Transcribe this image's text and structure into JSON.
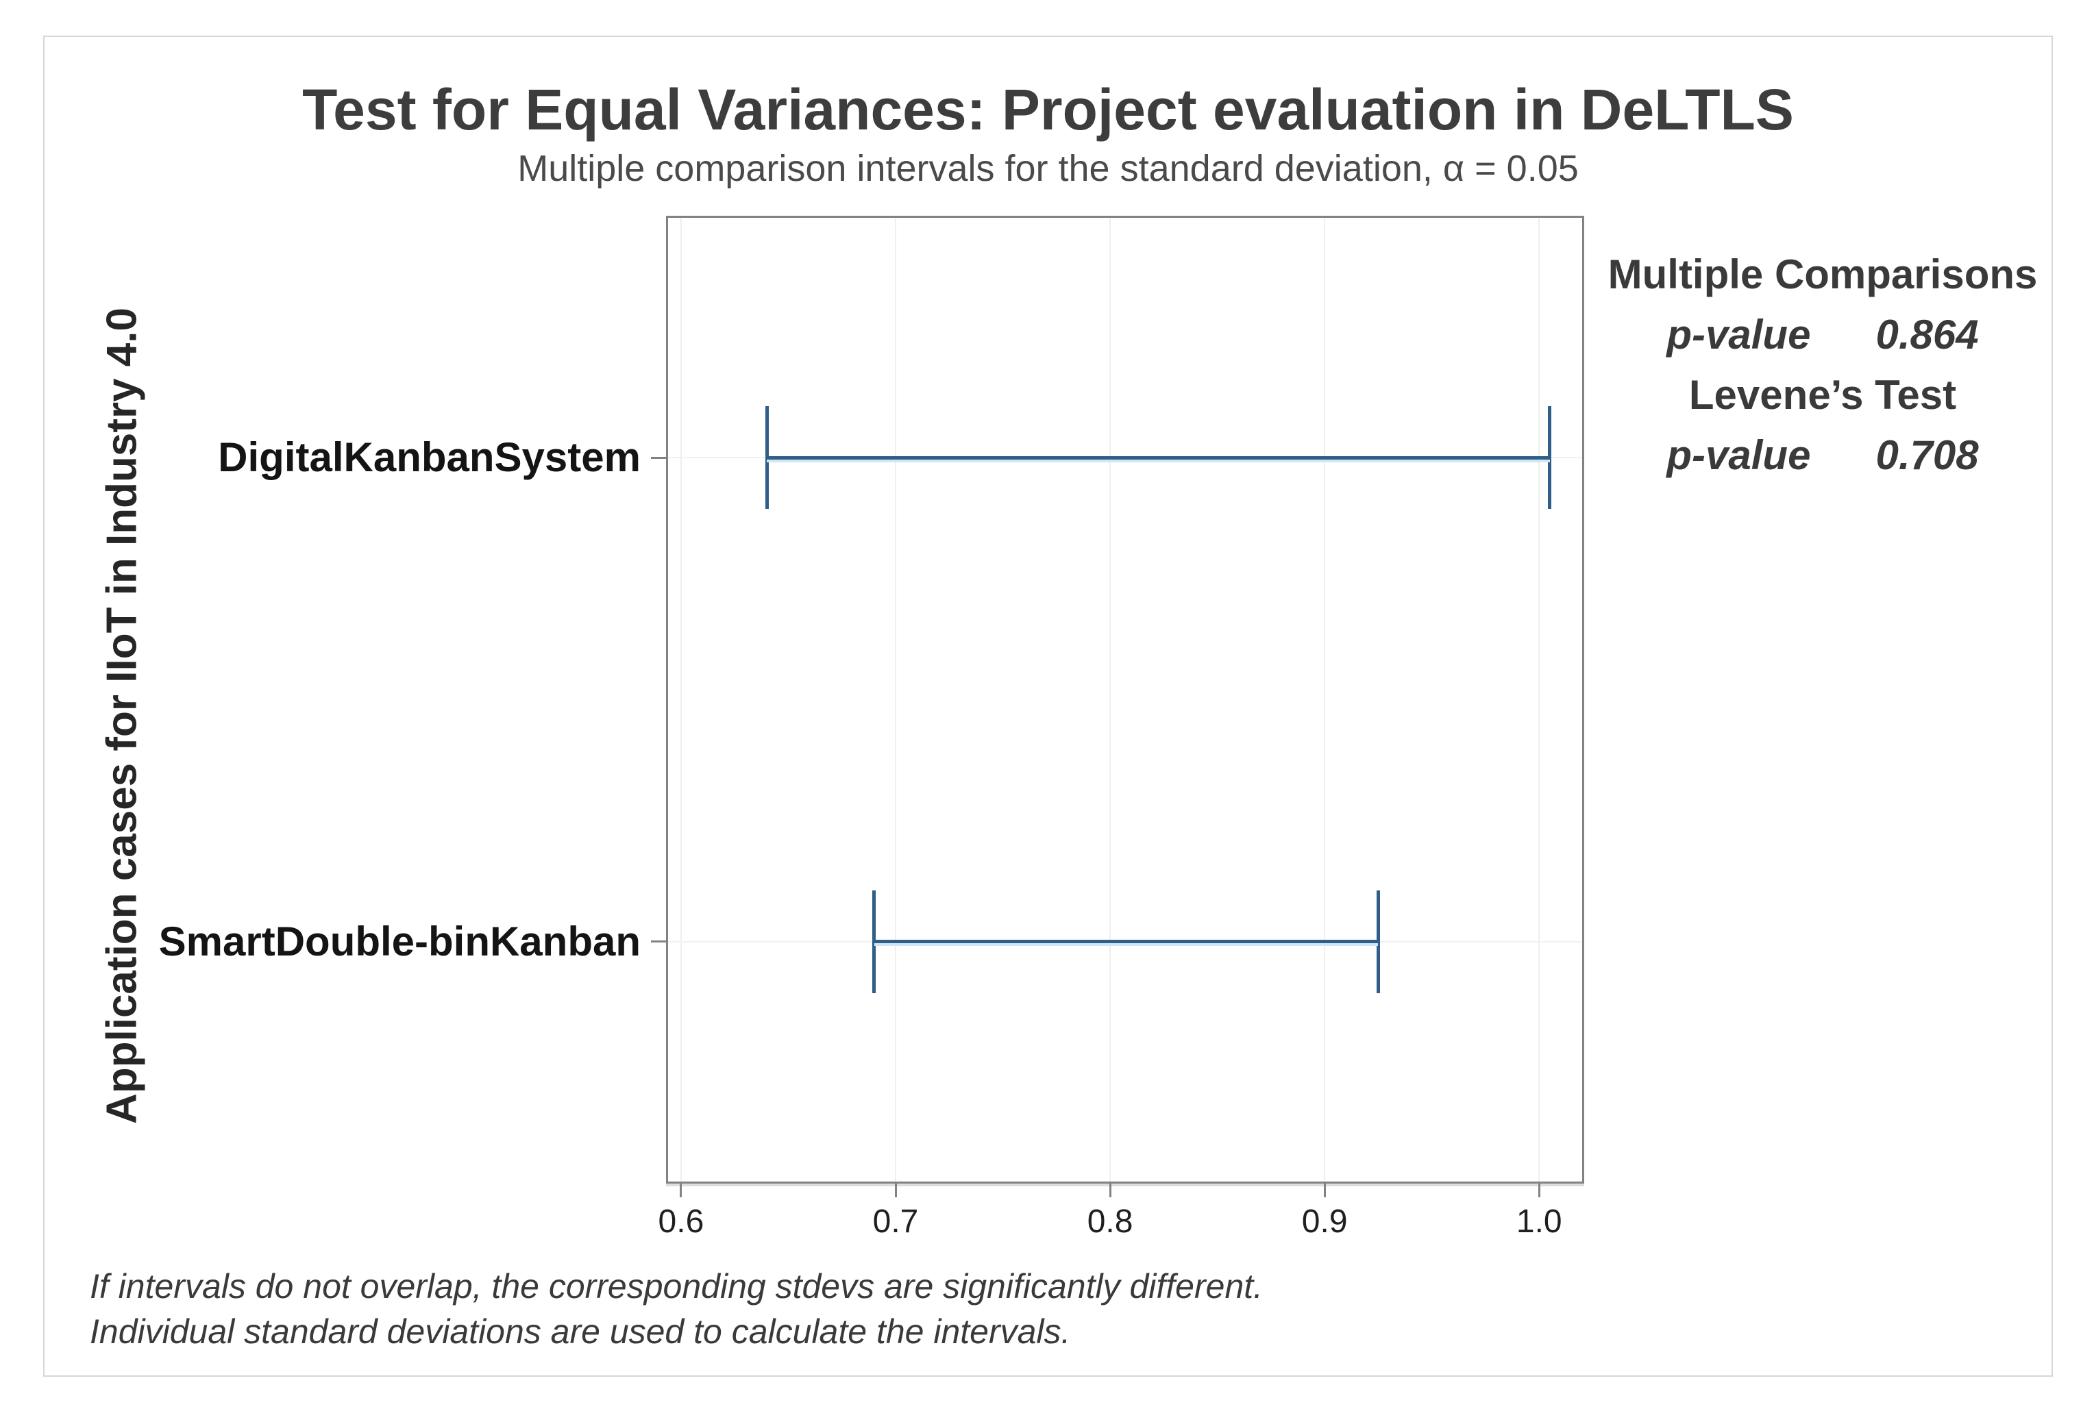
{
  "chart_data": {
    "type": "interval",
    "orientation": "horizontal",
    "title": "Test for Equal Variances: Project evaluation in DeLTLS",
    "subtitle": "Multiple comparison intervals for the standard deviation, α = 0.05",
    "ylabel": "Application cases for IIoT in Industry 4.0",
    "xlabel": "",
    "categories": [
      "DigitalKanbanSystem",
      "SmartDouble-binKanban"
    ],
    "intervals": [
      {
        "category": "DigitalKanbanSystem",
        "lower": 0.64,
        "upper": 1.005
      },
      {
        "category": "SmartDouble-binKanban",
        "lower": 0.69,
        "upper": 0.925
      }
    ],
    "x_ticks": [
      0.6,
      0.7,
      0.8,
      0.9,
      1.0
    ],
    "xlim": [
      0.593,
      1.021
    ],
    "grid": true,
    "legend_position": "none",
    "stats": [
      {
        "heading": "Multiple Comparisons",
        "label": "p-value",
        "value": "0.864"
      },
      {
        "heading": "Levene’s Test",
        "label": "p-value",
        "value": "0.708"
      }
    ],
    "footnotes": [
      "If intervals do not overlap, the corresponding stdevs are significantly different.",
      "Individual standard deviations are used to calculate the intervals."
    ],
    "colors": {
      "interval": "#2f5e88",
      "interval_glow": "#cfe6f5",
      "axis": "#828282",
      "grid": "#efefef",
      "title_text": "#3d3d3d",
      "frame_border": "#d7d7d7"
    }
  }
}
